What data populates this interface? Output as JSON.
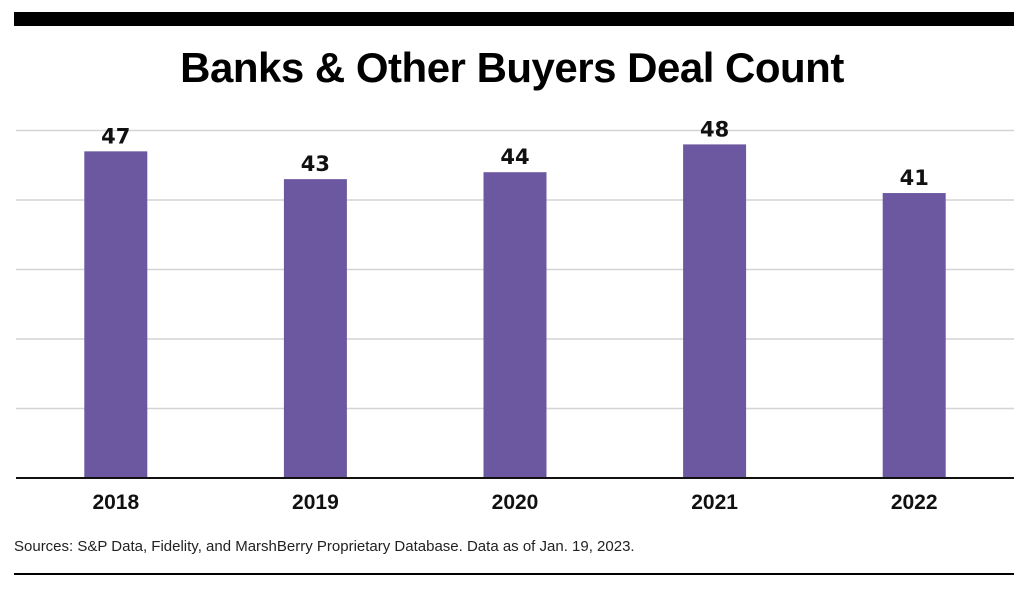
{
  "chart_data": {
    "type": "bar",
    "title": "Banks & Other Buyers Deal Count",
    "categories": [
      "2018",
      "2019",
      "2020",
      "2021",
      "2022"
    ],
    "values": [
      47,
      43,
      44,
      48,
      41
    ],
    "ylim": [
      0,
      50
    ],
    "grid": true,
    "bar_color": "#6C58A0",
    "source": "Sources: S&P Data, Fidelity, and MarshBerry Proprietary Database. Data as of Jan. 19, 2023."
  }
}
